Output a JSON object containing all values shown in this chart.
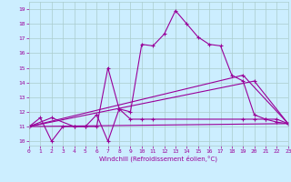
{
  "xlabel": "Windchill (Refroidissement éolien,°C)",
  "background_color": "#cceeff",
  "grid_color": "#aacccc",
  "line_color": "#990099",
  "xmin": 0,
  "xmax": 23,
  "ymin": 9.7,
  "ymax": 19.5,
  "yticks": [
    10,
    11,
    12,
    13,
    14,
    15,
    16,
    17,
    18,
    19
  ],
  "xticks": [
    0,
    1,
    2,
    3,
    4,
    5,
    6,
    7,
    8,
    9,
    10,
    11,
    12,
    13,
    14,
    15,
    16,
    17,
    18,
    19,
    20,
    21,
    22,
    23
  ],
  "lines": [
    {
      "x": [
        0,
        1,
        2,
        3,
        4,
        5,
        6,
        7,
        8,
        9,
        10,
        11,
        12,
        13,
        14,
        15,
        16,
        17,
        18,
        19,
        20,
        21,
        22,
        23
      ],
      "y": [
        11.0,
        11.6,
        10.0,
        11.0,
        11.0,
        11.0,
        11.8,
        10.0,
        12.2,
        12.0,
        16.6,
        16.5,
        17.3,
        18.9,
        18.0,
        17.1,
        16.6,
        16.5,
        14.5,
        14.1,
        11.8,
        11.5,
        11.3,
        11.2
      ]
    },
    {
      "x": [
        0,
        2,
        4,
        5,
        6,
        7,
        8,
        9,
        10,
        11,
        19,
        20,
        21,
        22,
        23
      ],
      "y": [
        11.0,
        11.6,
        11.0,
        11.0,
        11.0,
        15.0,
        12.2,
        11.5,
        11.5,
        11.5,
        11.5,
        11.5,
        11.5,
        11.5,
        11.2
      ]
    },
    {
      "x": [
        0,
        23
      ],
      "y": [
        11.0,
        11.2
      ]
    },
    {
      "x": [
        0,
        19,
        23
      ],
      "y": [
        11.0,
        14.5,
        11.2
      ]
    },
    {
      "x": [
        0,
        20,
        23
      ],
      "y": [
        11.0,
        14.1,
        11.2
      ]
    }
  ]
}
